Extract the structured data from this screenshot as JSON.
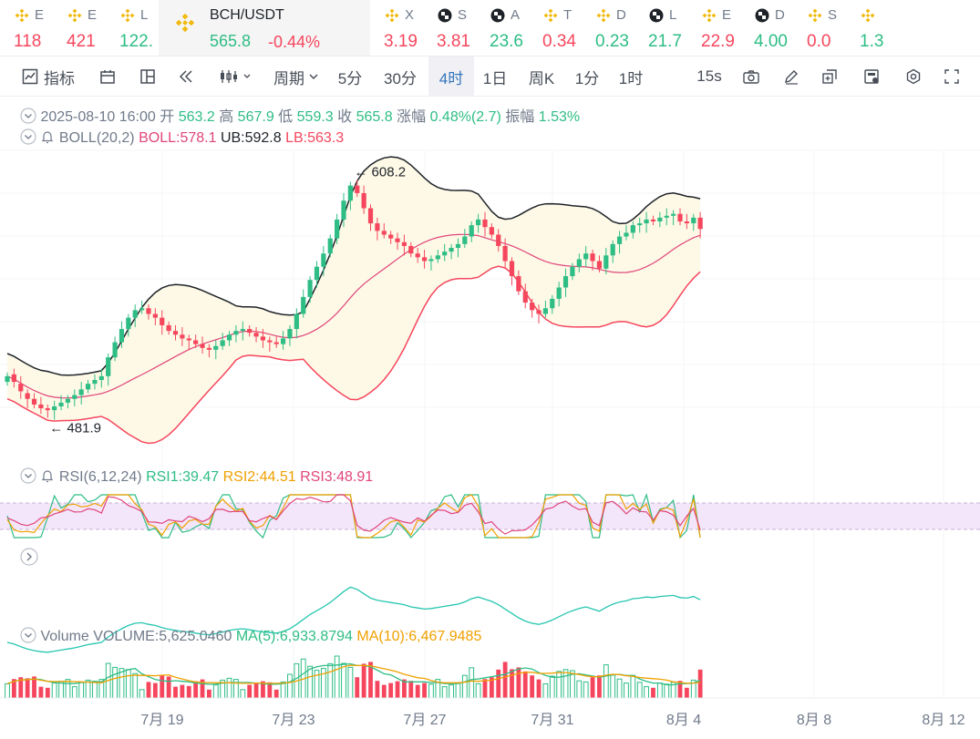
{
  "ticker": [
    {
      "sym": "E",
      "val": "118",
      "color": "#f6465d",
      "icon": "binance-logo-icon"
    },
    {
      "sym": "E",
      "val": "421",
      "color": "#f6465d",
      "icon": "binance-logo-icon"
    },
    {
      "sym": "L",
      "val": "122.",
      "color": "#2ebd85",
      "icon": "binance-logo-icon"
    },
    {
      "sym": "X",
      "val": "3.19",
      "color": "#f6465d",
      "icon": "binance-logo-icon"
    },
    {
      "sym": "S",
      "val": "3.81",
      "color": "#f6465d",
      "icon": "checkered-logo-icon"
    },
    {
      "sym": "A",
      "val": "23.6",
      "color": "#2ebd85",
      "icon": "checkered-logo-icon"
    },
    {
      "sym": "T",
      "val": "0.34",
      "color": "#f6465d",
      "icon": "binance-logo-icon"
    },
    {
      "sym": "D",
      "val": "0.23",
      "color": "#2ebd85",
      "icon": "binance-logo-icon"
    },
    {
      "sym": "L",
      "val": "21.7",
      "color": "#2ebd85",
      "icon": "checkered-logo-icon"
    },
    {
      "sym": "E",
      "val": "22.9",
      "color": "#f6465d",
      "icon": "binance-logo-icon"
    },
    {
      "sym": "D",
      "val": "4.00",
      "color": "#2ebd85",
      "icon": "checkered-logo-icon"
    },
    {
      "sym": "S",
      "val": "0.0",
      "color": "#f6465d",
      "icon": "binance-logo-icon"
    },
    {
      "sym": "",
      "val": "1.3",
      "color": "#2ebd85",
      "icon": "binance-logo-icon"
    }
  ],
  "active_pair": {
    "sym": "BCH/USDT",
    "price": "565.8",
    "change": "-0.44%"
  },
  "toolbar": {
    "indicators": "指标",
    "period": "周期",
    "intervals": [
      "5分",
      "30分",
      "4时",
      "1日",
      "周K",
      "1分",
      "1时"
    ],
    "active_interval": "4时",
    "refresh": "15s"
  },
  "ohlc": {
    "date": "2025-08-10 16:00",
    "open_label": "开",
    "open": "563.2",
    "high_label": "高",
    "high": "567.9",
    "low_label": "低",
    "low": "559.3",
    "close_label": "收",
    "close": "565.8",
    "change_label": "涨幅",
    "change": "0.48%(2.7)",
    "amp_label": "振幅",
    "amp": "1.53%"
  },
  "boll": {
    "name": "BOLL(20,2)",
    "mid": "BOLL:578.1",
    "ub": "UB:592.8",
    "lb": "LB:563.3"
  },
  "rsi": {
    "name": "RSI(6,12,24)",
    "r1": "RSI1:39.47",
    "r2": "RSI2:44.51",
    "r3": "RSI3:48.91"
  },
  "volume": {
    "name": "Volume",
    "vol": "VOLUME:5,625.0460",
    "ma5": "MA(5):6,933.8794",
    "ma10": "MA(10):6,467.9485"
  },
  "colors": {
    "up": "#2ebd85",
    "down": "#f6465d",
    "boll_mid": "#e0457b",
    "boll_band": "#fdf9e6",
    "rsi_band": "#f3e6fb",
    "ma5": "#2ebd85",
    "ma10": "#f0a000",
    "rsi1": "#2ebd85",
    "rsi2": "#f0a000",
    "rsi3": "#e0457b"
  },
  "chart_data": {
    "type": "candlestick",
    "x_tick_labels": [
      "7月 19",
      "7月 23",
      "7月 27",
      "7月 31",
      "8月 4",
      "8月 8",
      "8月 12"
    ],
    "annotations": {
      "max": "608.2",
      "min": "481.9"
    },
    "close_series": [
      505,
      502,
      497,
      493,
      490,
      488,
      487,
      489,
      491,
      493,
      495,
      498,
      501,
      503,
      505,
      515,
      523,
      530,
      536,
      540,
      541,
      538,
      536,
      532,
      529,
      527,
      525,
      524,
      522,
      520,
      519,
      521,
      524,
      527,
      529,
      530,
      528,
      526,
      524,
      523,
      522,
      525,
      530,
      538,
      547,
      556,
      563,
      570,
      578,
      588,
      598,
      606,
      602,
      594,
      586,
      582,
      580,
      578,
      576,
      574,
      570,
      568,
      566,
      567,
      569,
      571,
      573,
      575,
      579,
      585,
      588,
      584,
      580,
      574,
      566,
      558,
      550,
      544,
      540,
      538,
      541,
      546,
      552,
      558,
      563,
      567,
      570,
      566,
      562,
      569,
      575,
      579,
      581,
      585,
      586,
      588,
      587,
      589,
      590,
      591,
      587,
      586,
      589,
      583
    ],
    "open_series": [
      502,
      506,
      501,
      496,
      493,
      490,
      488,
      487,
      489,
      491,
      493,
      495,
      498,
      501,
      503,
      505,
      515,
      523,
      530,
      536,
      540,
      541,
      538,
      536,
      532,
      529,
      527,
      525,
      524,
      522,
      520,
      519,
      521,
      524,
      527,
      529,
      530,
      528,
      526,
      524,
      523,
      522,
      525,
      530,
      538,
      547,
      556,
      563,
      570,
      578,
      588,
      598,
      606,
      602,
      594,
      586,
      582,
      580,
      578,
      576,
      574,
      570,
      568,
      566,
      567,
      569,
      571,
      573,
      575,
      579,
      585,
      588,
      584,
      580,
      574,
      566,
      558,
      550,
      544,
      540,
      538,
      541,
      546,
      552,
      558,
      563,
      567,
      570,
      566,
      562,
      569,
      575,
      579,
      581,
      585,
      586,
      588,
      587,
      589,
      590,
      591,
      587,
      586,
      589
    ]
  }
}
